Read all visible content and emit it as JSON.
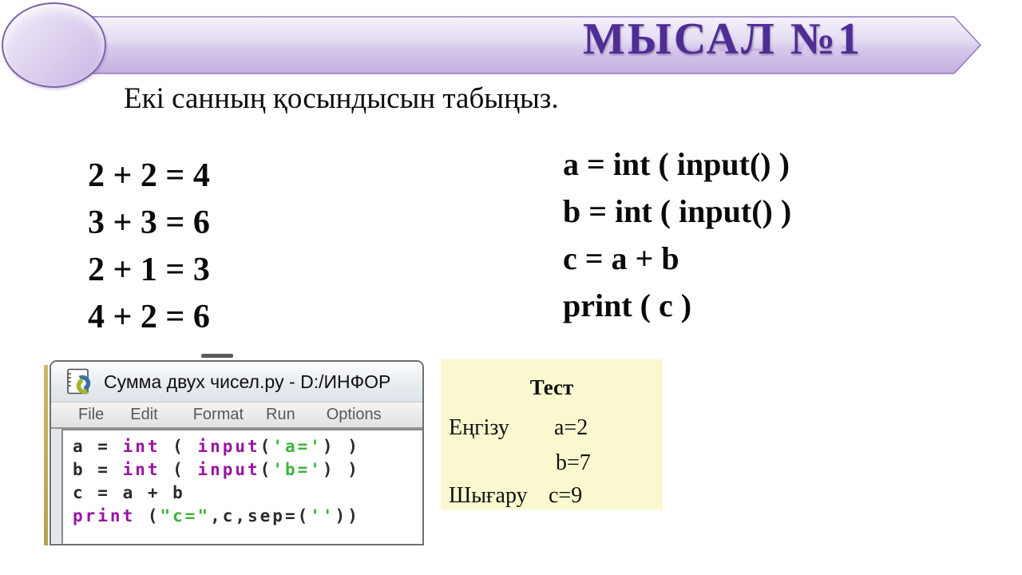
{
  "slide": {
    "banner": {
      "title": "МЫСАЛ №1"
    },
    "subtitle": "Екі санның қосындысын табыңыз.",
    "math_examples": [
      "2 + 2 = 4",
      "3 + 3 = 6",
      "2 + 1 = 3",
      "4 + 2 = 6"
    ],
    "pseudocode": [
      "a = int ( input() )",
      "b = int ( input() )",
      "c = a + b",
      "print ( c )"
    ],
    "idle_window": {
      "title": "Сумма двух чисел.py - D:/ИНФОР",
      "menu": [
        "File",
        "Edit",
        "Format",
        "Run",
        "Options"
      ],
      "code_lines": [
        [
          {
            "t": "a = ",
            "c": "base"
          },
          {
            "t": "int",
            "c": "kw"
          },
          {
            "t": " ( ",
            "c": "base"
          },
          {
            "t": "input",
            "c": "kw"
          },
          {
            "t": "(",
            "c": "base"
          },
          {
            "t": "'a='",
            "c": "str"
          },
          {
            "t": ") )",
            "c": "base"
          }
        ],
        [
          {
            "t": "b = ",
            "c": "base"
          },
          {
            "t": "int",
            "c": "kw"
          },
          {
            "t": " ( ",
            "c": "base"
          },
          {
            "t": "input",
            "c": "kw"
          },
          {
            "t": "(",
            "c": "base"
          },
          {
            "t": "'b='",
            "c": "str"
          },
          {
            "t": ") )",
            "c": "base"
          }
        ],
        [
          {
            "t": "c = a + b",
            "c": "base"
          }
        ],
        [
          {
            "t": "print",
            "c": "kw"
          },
          {
            "t": " (",
            "c": "base"
          },
          {
            "t": "\"c=\"",
            "c": "str"
          },
          {
            "t": ",c,sep=(",
            "c": "base"
          },
          {
            "t": "''",
            "c": "str"
          },
          {
            "t": "))",
            "c": "base"
          }
        ]
      ]
    },
    "test_box": {
      "title": "Тест",
      "rows": [
        {
          "label": "Еңгізу",
          "value": "a=2"
        },
        {
          "label": "",
          "value": "b=7"
        },
        {
          "label": "Шығару",
          "value": "c=9"
        }
      ]
    },
    "colors": {
      "banner_text": "#4e2d94",
      "band_fill_top": "#f6f2fb",
      "band_fill_bottom": "#c4b0e0",
      "code_keyword": "#9c13a5",
      "code_string": "#3cb43c",
      "test_box_bg": "#f9f8cf"
    }
  }
}
